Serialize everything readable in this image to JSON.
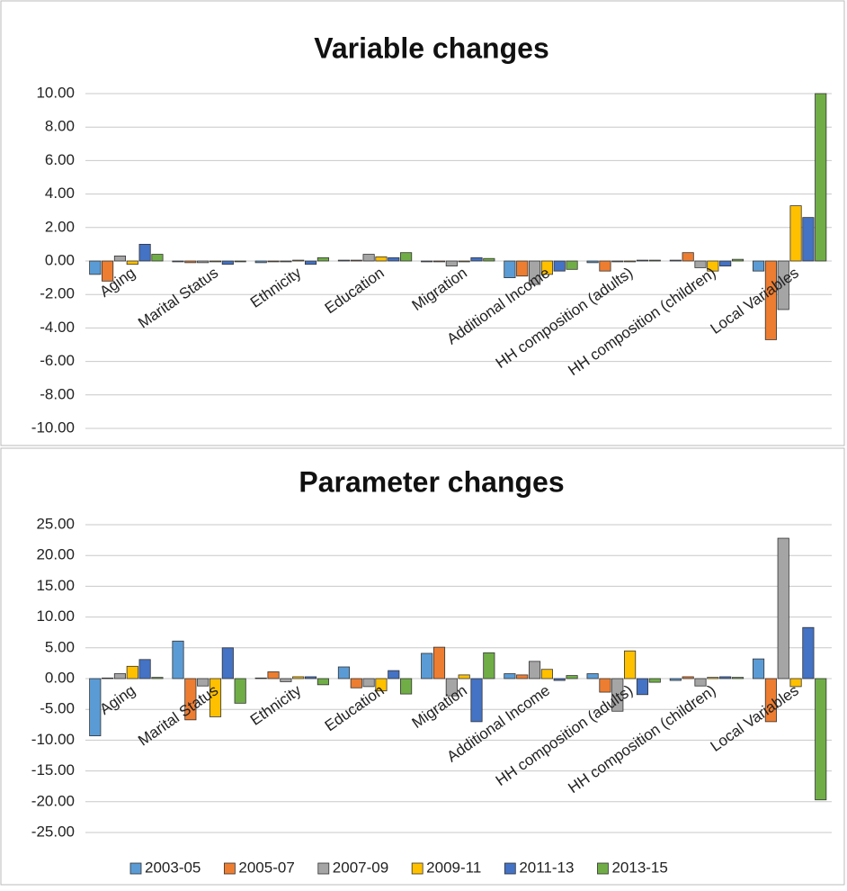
{
  "chart_data": [
    {
      "type": "bar",
      "title": "Variable changes",
      "categories": [
        "Aging",
        "Marital Status",
        "Ethnicity",
        "Education",
        "Migration",
        "Additional Income",
        "HH composition (adults)",
        "HH composition (children)",
        "Local Variables"
      ],
      "series": [
        {
          "color": "#5b9bd5",
          "values": [
            -0.8,
            -0.05,
            -0.1,
            0.05,
            -0.05,
            -1.0,
            -0.1,
            0.05,
            -0.6
          ]
        },
        {
          "color": "#ed7d31",
          "values": [
            -1.2,
            -0.1,
            -0.05,
            0.05,
            -0.05,
            -0.9,
            -0.6,
            0.5,
            -4.7
          ]
        },
        {
          "color": "#a5a5a5",
          "values": [
            0.3,
            -0.1,
            -0.05,
            0.4,
            -0.3,
            -1.4,
            -0.05,
            -0.4,
            -2.9
          ]
        },
        {
          "color": "#ffc000",
          "values": [
            -0.2,
            -0.05,
            0.05,
            0.25,
            -0.05,
            -0.8,
            -0.05,
            -0.6,
            3.3
          ]
        },
        {
          "color": "#4472c4",
          "values": [
            1.0,
            -0.2,
            -0.2,
            0.2,
            0.2,
            -0.6,
            0.05,
            -0.3,
            2.6
          ]
        },
        {
          "color": "#70ad47",
          "values": [
            0.4,
            -0.05,
            0.2,
            0.5,
            0.15,
            -0.5,
            0.05,
            0.1,
            10.0
          ]
        }
      ],
      "ylim": [
        -10,
        10
      ],
      "yticks": [
        {
          "value": -10,
          "label": "-10.00"
        },
        {
          "value": -8,
          "label": "-8.00"
        },
        {
          "value": -6,
          "label": "-6.00"
        },
        {
          "value": -4,
          "label": "-4.00"
        },
        {
          "value": -2,
          "label": "-2.00"
        },
        {
          "value": 0,
          "label": "0.00"
        },
        {
          "value": 2,
          "label": "2.00"
        },
        {
          "value": 4,
          "label": "4.00"
        },
        {
          "value": 6,
          "label": "6.00"
        },
        {
          "value": 8,
          "label": "8.00"
        },
        {
          "value": 10,
          "label": "10.00"
        }
      ],
      "grid": true
    },
    {
      "type": "bar",
      "title": "Parameter changes",
      "categories": [
        "Aging",
        "Marital Status",
        "Ethnicity",
        "Education",
        "Migration",
        "Additional Income",
        "HH composition (adults)",
        "HH composition (children)",
        "Local Variables"
      ],
      "series": [
        {
          "name": "2003-05",
          "color": "#5b9bd5",
          "values": [
            -9.3,
            6.1,
            0.1,
            1.9,
            4.1,
            0.8,
            0.8,
            -0.3,
            3.2
          ]
        },
        {
          "name": "2005-07",
          "color": "#ed7d31",
          "values": [
            0.1,
            -6.7,
            1.1,
            -1.5,
            5.1,
            0.6,
            -2.2,
            0.3,
            -7.0
          ]
        },
        {
          "name": "2007-09",
          "color": "#a5a5a5",
          "values": [
            0.8,
            -1.2,
            -0.5,
            -1.3,
            -2.8,
            2.8,
            -5.3,
            -1.2,
            22.8
          ]
        },
        {
          "name": "2009-11",
          "color": "#ffc000",
          "values": [
            2.0,
            -6.2,
            0.3,
            -2.0,
            0.6,
            1.5,
            4.5,
            0.2,
            -1.3
          ]
        },
        {
          "name": "2011-13",
          "color": "#4472c4",
          "values": [
            3.1,
            5.0,
            0.3,
            1.3,
            -7.0,
            -0.3,
            -2.6,
            0.3,
            8.3
          ]
        },
        {
          "name": "2013-15",
          "color": "#70ad47",
          "values": [
            0.2,
            -4.0,
            -1.0,
            -2.5,
            4.2,
            0.5,
            -0.6,
            0.2,
            -19.7
          ]
        }
      ],
      "ylim": [
        -25,
        25
      ],
      "yticks": [
        {
          "value": -25,
          "label": "-25.00"
        },
        {
          "value": -20,
          "label": "-20.00"
        },
        {
          "value": -15,
          "label": "-15.00"
        },
        {
          "value": -10,
          "label": "-10.00"
        },
        {
          "value": -5,
          "label": "-5.00"
        },
        {
          "value": 0,
          "label": "0.00"
        },
        {
          "value": 5,
          "label": "5.00"
        },
        {
          "value": 10,
          "label": "10.00"
        },
        {
          "value": 15,
          "label": "15.00"
        },
        {
          "value": 20,
          "label": "20.00"
        },
        {
          "value": 25,
          "label": "25.00"
        }
      ],
      "grid": true,
      "legend": "bottom"
    }
  ]
}
